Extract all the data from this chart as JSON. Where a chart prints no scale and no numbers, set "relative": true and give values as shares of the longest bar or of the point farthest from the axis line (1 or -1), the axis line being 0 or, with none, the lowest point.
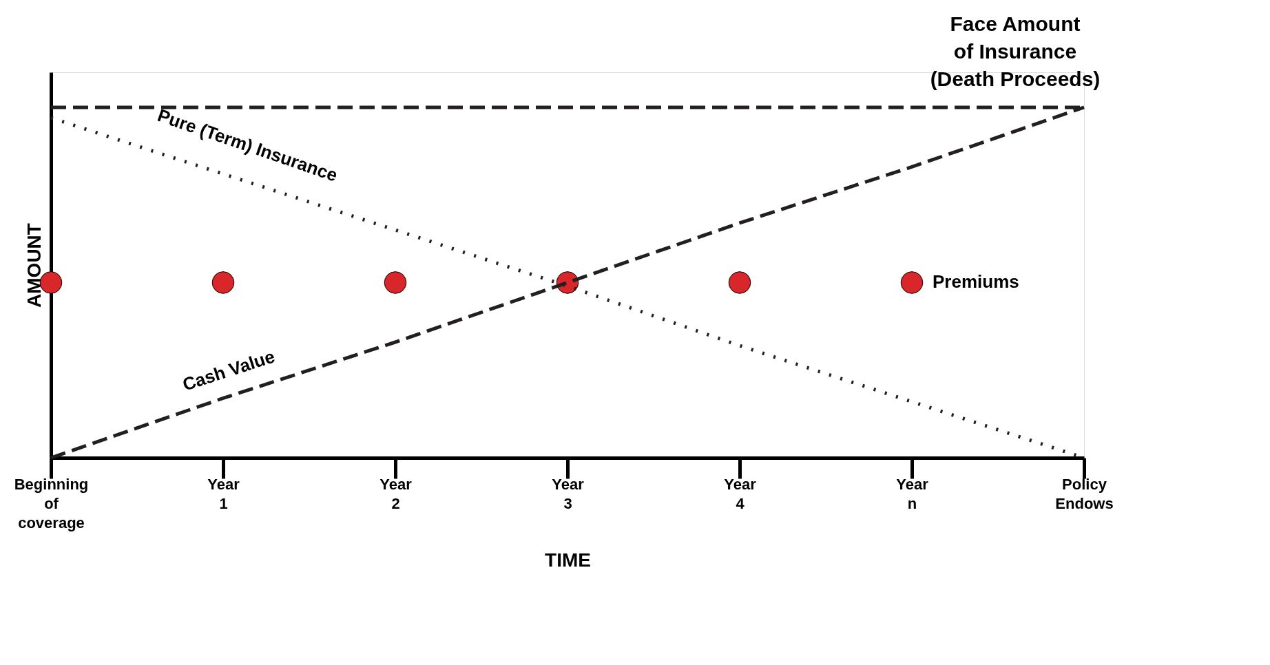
{
  "chart_data": {
    "type": "line",
    "relative": true,
    "xlabel": "TIME",
    "ylabel": "AMOUNT",
    "legend": false,
    "grid": false,
    "categories": [
      "Beginning of coverage",
      "Year 1",
      "Year 2",
      "Year 3",
      "Year 4",
      "Year n",
      "Policy Endows"
    ],
    "series": [
      {
        "name": "Face Amount of Insurance (Death Proceeds)",
        "type": "line",
        "line_style": "dashed",
        "marker": "none",
        "color": "#231f20",
        "values": [
          1,
          1,
          1,
          1,
          1,
          1,
          1
        ]
      },
      {
        "name": "Pure (Term) Insurance",
        "type": "line",
        "line_style": "dotted",
        "marker": "none",
        "color": "#231f20",
        "values": [
          0.97,
          0.81,
          0.65,
          0.49,
          0.32,
          0.16,
          0
        ]
      },
      {
        "name": "Cash Value",
        "type": "line",
        "line_style": "dashed",
        "marker": "none",
        "color": "#231f20",
        "values": [
          0,
          0.17,
          0.33,
          0.5,
          0.67,
          0.83,
          1
        ]
      },
      {
        "name": "Premiums",
        "type": "scatter",
        "marker": "circle",
        "color": "#d9262b",
        "values": [
          0.5,
          0.5,
          0.5,
          0.5,
          0.5,
          0.5,
          null
        ]
      }
    ]
  }
}
